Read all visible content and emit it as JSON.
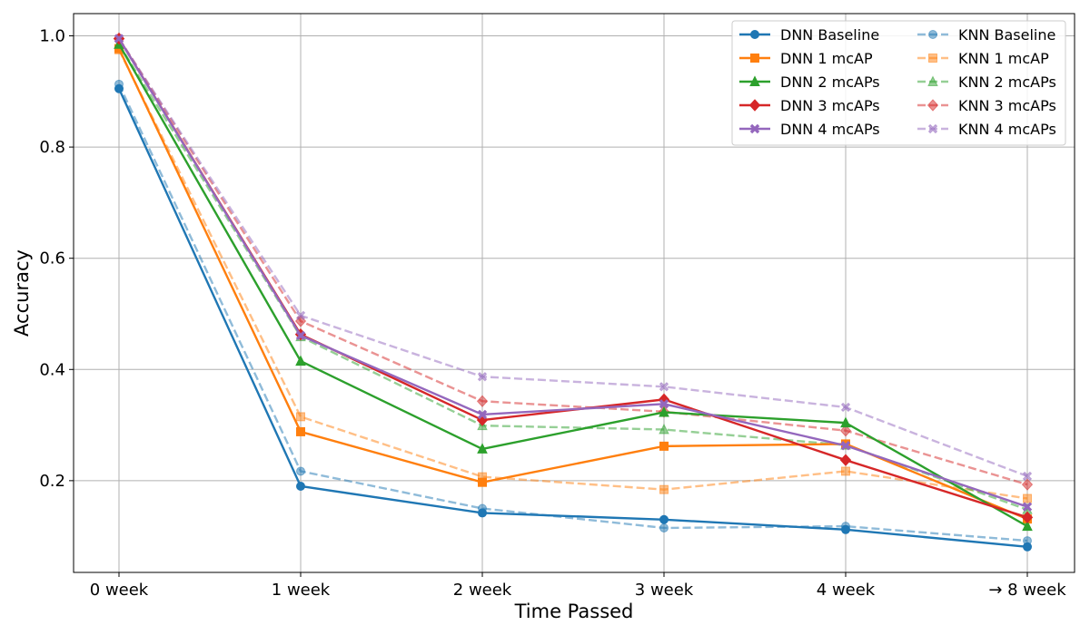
{
  "chart_data": {
    "type": "line",
    "xlabel": "Time Passed",
    "ylabel": "Accuracy",
    "categories": [
      "0 week",
      "1 week",
      "2 week",
      "3 week",
      "4 week",
      "→ 8 week"
    ],
    "ylim": [
      0.035,
      1.04
    ],
    "yticks": [
      0.2,
      0.4,
      0.6,
      0.8,
      1.0
    ],
    "ytick_labels": [
      "0.2",
      "0.4",
      "0.6",
      "0.8",
      "1.0"
    ],
    "grid": true,
    "legend_position": "top-right",
    "legend_columns": 2,
    "series": [
      {
        "name": "DNN Baseline",
        "color": "#1f77b4",
        "marker": "circle",
        "style": "solid",
        "values": [
          0.905,
          0.19,
          0.142,
          0.13,
          0.112,
          0.081
        ]
      },
      {
        "name": "DNN 1 mcAP",
        "color": "#ff7f0e",
        "marker": "square",
        "style": "solid",
        "values": [
          0.977,
          0.288,
          0.197,
          0.262,
          0.266,
          0.131
        ]
      },
      {
        "name": "DNN 2 mcAPs",
        "color": "#2ca02c",
        "marker": "triangle",
        "style": "solid",
        "values": [
          0.985,
          0.415,
          0.257,
          0.323,
          0.304,
          0.118
        ]
      },
      {
        "name": "DNN 3 mcAPs",
        "color": "#d62728",
        "marker": "diamond",
        "style": "solid",
        "values": [
          0.995,
          0.463,
          0.309,
          0.346,
          0.237,
          0.134
        ]
      },
      {
        "name": "DNN 4 mcAPs",
        "color": "#9467bd",
        "marker": "x",
        "style": "solid",
        "values": [
          0.995,
          0.461,
          0.319,
          0.338,
          0.263,
          0.153
        ]
      },
      {
        "name": "KNN Baseline",
        "color": "#1f77b4",
        "marker": "circle",
        "style": "dashed",
        "values": [
          0.913,
          0.217,
          0.15,
          0.115,
          0.118,
          0.092
        ]
      },
      {
        "name": "KNN 1 mcAP",
        "color": "#ff7f0e",
        "marker": "square",
        "style": "dashed",
        "values": [
          0.975,
          0.315,
          0.207,
          0.184,
          0.217,
          0.168
        ]
      },
      {
        "name": "KNN 2 mcAPs",
        "color": "#2ca02c",
        "marker": "triangle",
        "style": "dashed",
        "values": [
          0.985,
          0.459,
          0.299,
          0.292,
          0.264,
          0.148
        ]
      },
      {
        "name": "KNN 3 mcAPs",
        "color": "#d62728",
        "marker": "diamond",
        "style": "dashed",
        "values": [
          0.995,
          0.487,
          0.343,
          0.324,
          0.29,
          0.193
        ]
      },
      {
        "name": "KNN 4 mcAPs",
        "color": "#9467bd",
        "marker": "x",
        "style": "dashed",
        "values": [
          0.995,
          0.497,
          0.387,
          0.369,
          0.332,
          0.208
        ]
      }
    ]
  }
}
